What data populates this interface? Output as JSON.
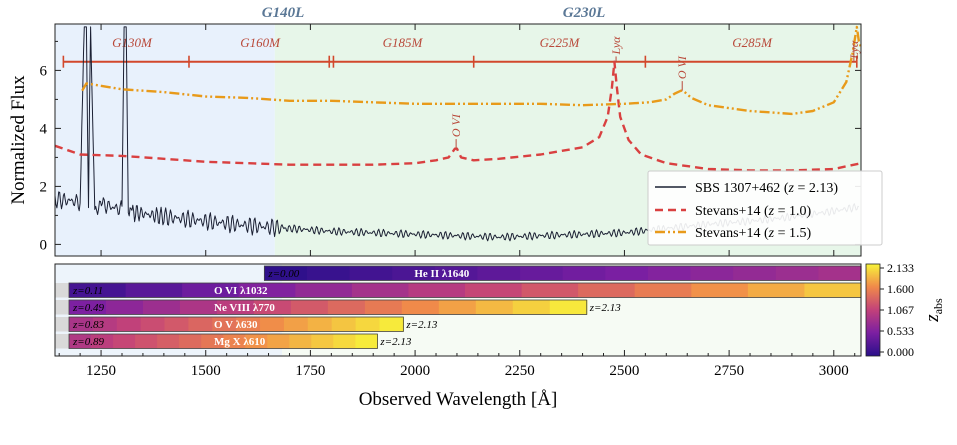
{
  "chart_data": {
    "type": "line",
    "xlabel": "Observed Wavelength [Å]",
    "ylabel": "Normalized Flux",
    "xlim": [
      1140,
      3065
    ],
    "ylim": [
      -0.4,
      7.6
    ],
    "x_ticks": [
      "1250",
      "1500",
      "1750",
      "2000",
      "2250",
      "2500",
      "2750",
      "3000"
    ],
    "y_ticks": [
      "0",
      "2",
      "4",
      "6"
    ],
    "gratings": [
      {
        "label": "G140L",
        "x_start": 1140,
        "x_end": 1665,
        "color": "#e8f1fc"
      },
      {
        "label": "G230L",
        "x_start": 1665,
        "x_end": 3065,
        "color": "#e7f6e9"
      }
    ],
    "bands": [
      {
        "label": "G130M",
        "x_start": 1140,
        "x_end": 1460
      },
      {
        "label": "G160M",
        "x_start": 1460,
        "x_end": 1800
      },
      {
        "label": "G185M",
        "x_start": 1800,
        "x_end": 2140
      },
      {
        "label": "G225M",
        "x_start": 2140,
        "x_end": 2550
      },
      {
        "label": "G285M",
        "x_start": 2550,
        "x_end": 3065
      }
    ],
    "band_ticks": [
      1160,
      1460,
      1795,
      1805,
      2140,
      2550,
      3055
    ],
    "series": [
      {
        "name": "SBS 1307+462",
        "z": "2.13",
        "color": "#1b2033",
        "style": "solid",
        "x": [
          1140,
          1180,
          1200,
          1210,
          1215,
          1220,
          1225,
          1235,
          1260,
          1300,
          1305,
          1310,
          1315,
          1330,
          1400,
          1500,
          1600,
          1700,
          1800,
          1900,
          2000,
          2100,
          2200,
          2300,
          2400,
          2500,
          2600,
          2700,
          2800,
          2900,
          3000,
          3060
        ],
        "y": [
          1.55,
          1.5,
          1.45,
          7.5,
          7.5,
          1.4,
          7.5,
          1.3,
          1.35,
          1.2,
          7.5,
          7.5,
          1.25,
          1.1,
          0.95,
          0.8,
          0.65,
          0.55,
          0.45,
          0.4,
          0.35,
          0.3,
          0.25,
          0.3,
          0.35,
          0.4,
          0.55,
          0.7,
          0.8,
          0.95,
          1.15,
          1.3
        ]
      },
      {
        "name": "Stevans+14",
        "z": "1.0",
        "color": "#d94040",
        "style": "dashed",
        "x": [
          1140,
          1200,
          1300,
          1400,
          1500,
          1600,
          1700,
          1800,
          1900,
          2000,
          2050,
          2080,
          2095,
          2100,
          2110,
          2140,
          2200,
          2300,
          2400,
          2440,
          2460,
          2470,
          2476,
          2482,
          2490,
          2510,
          2540,
          2600,
          2700,
          2800,
          2900,
          3000,
          3065
        ],
        "y": [
          3.4,
          3.1,
          3.05,
          2.95,
          2.85,
          2.8,
          2.75,
          2.75,
          2.75,
          2.8,
          2.9,
          3.0,
          3.3,
          3.3,
          3.0,
          2.9,
          2.95,
          3.1,
          3.35,
          3.7,
          4.4,
          5.4,
          6.3,
          5.4,
          4.4,
          3.6,
          3.1,
          2.8,
          2.6,
          2.55,
          2.55,
          2.6,
          2.8
        ]
      },
      {
        "name": "Stevans+14",
        "z": "1.5",
        "color": "#e89a1a",
        "style": "dashdot",
        "x": [
          1205,
          1215,
          1300,
          1400,
          1500,
          1600,
          1700,
          1800,
          1900,
          2000,
          2100,
          2200,
          2300,
          2400,
          2500,
          2560,
          2600,
          2620,
          2635,
          2640,
          2660,
          2700,
          2800,
          2900,
          2950,
          3000,
          3030,
          3045,
          3055,
          3060,
          3065
        ],
        "y": [
          5.3,
          5.55,
          5.35,
          5.25,
          5.1,
          5.05,
          4.95,
          4.95,
          4.9,
          4.85,
          4.85,
          4.85,
          4.85,
          4.8,
          4.85,
          4.9,
          5.0,
          5.2,
          5.3,
          5.3,
          5.05,
          4.8,
          4.6,
          4.5,
          4.6,
          4.9,
          5.6,
          6.6,
          7.5,
          7.0,
          6.8
        ]
      }
    ],
    "line_labels": [
      {
        "text": "Lyα",
        "x": 2480
      },
      {
        "text": "O VI",
        "x": 2098
      },
      {
        "text": "O VI",
        "x": 2638
      },
      {
        "text": "Lyα",
        "x": 3048
      }
    ],
    "legend": {
      "placement": "lower-right"
    },
    "absorbers": {
      "colorbar": {
        "label": "z_abs",
        "min": 0.0,
        "max": 2.133,
        "ticks": [
          "2.133",
          "1.600",
          "1.067",
          "0.533",
          "0.000"
        ]
      },
      "rows": [
        {
          "ion": "He II λ1640",
          "z_start_label": "z=0.00",
          "z_end_label": "",
          "x_start": 1640,
          "x_end": 3065,
          "z_start": 0.0,
          "z_end": 0.87
        },
        {
          "ion": "O VI λ1032",
          "z_start_label": "z=0.11",
          "z_end_label": "",
          "x_start": 1140,
          "x_end": 3065,
          "z_start": 0.11,
          "z_end": 1.97
        },
        {
          "ion": "Ne VIII λ770",
          "z_start_label": "z=0.49",
          "z_end_label": "z=2.13",
          "x_start": 1140,
          "x_end": 2410,
          "z_start": 0.49,
          "z_end": 2.13
        },
        {
          "ion": "O V λ630",
          "z_start_label": "z=0.83",
          "z_end_label": "z=2.13",
          "x_start": 1140,
          "x_end": 1972,
          "z_start": 0.83,
          "z_end": 2.13
        },
        {
          "ion": "Mg X λ610",
          "z_start_label": "z=0.89",
          "z_end_label": "z=2.13",
          "x_start": 1140,
          "x_end": 1910,
          "z_start": 0.89,
          "z_end": 2.13
        }
      ]
    }
  },
  "colors": {
    "band_line": "#d2482c",
    "grating_label": "#5b7896",
    "frame": "#222222"
  }
}
